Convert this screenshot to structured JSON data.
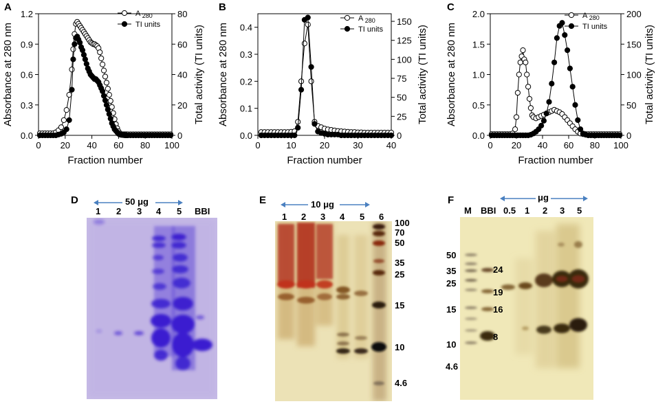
{
  "chart_data": [
    {
      "type": "line",
      "panel": "A",
      "xlabel": "Fraction number",
      "ylabel_left": "Absorbance at 280 nm",
      "ylabel_right": "Total activity (TI units)",
      "xlim": [
        0,
        100
      ],
      "ylim_left": [
        0,
        1.2
      ],
      "ylim_right": [
        0,
        80
      ],
      "xticks": [
        "0",
        "20",
        "40",
        "60",
        "80",
        "100"
      ],
      "yticks_left": [
        "0.0",
        "0.3",
        "0.6",
        "0.9",
        "1.2"
      ],
      "yticks_right": [
        "0",
        "20",
        "40",
        "60",
        "80"
      ],
      "legend": [
        "A 280",
        "TI units"
      ],
      "series": [
        {
          "name": "A 280",
          "axis": "left",
          "marker": "open",
          "x": [
            1,
            3,
            5,
            7,
            9,
            11,
            13,
            15,
            17,
            19,
            21,
            23,
            25,
            26,
            27,
            28,
            29,
            30,
            31,
            32,
            33,
            34,
            35,
            36,
            37,
            38,
            39,
            40,
            41,
            42,
            43,
            44,
            45,
            46,
            47,
            48,
            49,
            50,
            51,
            52,
            53,
            54,
            55,
            56,
            57,
            58,
            59,
            60,
            61,
            62,
            63,
            64,
            65,
            66,
            67,
            69,
            71,
            73,
            75,
            77,
            79,
            81,
            83,
            85,
            87,
            89,
            91,
            93,
            95,
            97,
            99
          ],
          "y": [
            0.02,
            0.02,
            0.02,
            0.02,
            0.02,
            0.02,
            0.03,
            0.05,
            0.08,
            0.15,
            0.25,
            0.4,
            0.65,
            0.85,
            1.0,
            1.1,
            1.12,
            1.1,
            1.08,
            1.06,
            1.04,
            1.02,
            1.0,
            0.98,
            0.96,
            0.94,
            0.92,
            0.91,
            0.9,
            0.9,
            0.89,
            0.88,
            0.86,
            0.82,
            0.76,
            0.7,
            0.64,
            0.58,
            0.52,
            0.46,
            0.4,
            0.34,
            0.28,
            0.22,
            0.16,
            0.11,
            0.07,
            0.04,
            0.02,
            0.01,
            0.01,
            0.01,
            0.01,
            0.01,
            0.01,
            0.01,
            0.01,
            0.01,
            0.01,
            0.01,
            0.01,
            0.01,
            0.01,
            0.01,
            0.01,
            0.01,
            0.01,
            0.01,
            0.01,
            0.01,
            0.01
          ]
        },
        {
          "name": "TI units",
          "axis": "right",
          "marker": "filled",
          "x": [
            1,
            3,
            5,
            7,
            9,
            11,
            13,
            15,
            17,
            19,
            21,
            23,
            25,
            26,
            27,
            28,
            29,
            30,
            31,
            32,
            33,
            34,
            35,
            36,
            37,
            38,
            39,
            40,
            41,
            42,
            43,
            44,
            45,
            46,
            47,
            48,
            49,
            50,
            51,
            52,
            53,
            54,
            55,
            56,
            57,
            58,
            59,
            60,
            61,
            62,
            63,
            64,
            65,
            66,
            67,
            69,
            71,
            73,
            75,
            77,
            79,
            81,
            83,
            85,
            87,
            89,
            91,
            93,
            95,
            97,
            99
          ],
          "y": [
            0,
            0,
            0,
            0,
            0,
            0,
            0,
            0.5,
            1,
            2,
            4,
            10,
            30,
            50,
            60,
            64,
            65,
            63,
            61,
            58,
            56,
            53,
            50,
            47,
            44,
            42,
            40,
            39,
            38,
            37,
            37,
            36,
            35,
            33,
            31,
            29,
            26,
            23,
            20,
            17,
            14,
            11,
            8,
            6,
            4,
            3,
            2,
            1,
            0.5,
            0.3,
            0.2,
            0.1,
            0,
            0,
            0,
            0,
            0,
            0,
            0,
            0,
            0,
            0,
            0,
            0,
            0,
            0,
            0,
            0,
            0,
            0,
            0
          ]
        }
      ]
    },
    {
      "type": "line",
      "panel": "B",
      "xlabel": "Fraction number",
      "ylabel_left": "Absorbance at 280 nm",
      "ylabel_right": "Total activity (TI units)",
      "xlim": [
        0,
        40
      ],
      "ylim_left": [
        0,
        0.45
      ],
      "ylim_right": [
        0,
        160
      ],
      "xticks": [
        "0",
        "10",
        "20",
        "30",
        "40"
      ],
      "yticks_left": [
        "0.0",
        "0.1",
        "0.2",
        "0.3",
        "0.4"
      ],
      "yticks_right": [
        "0",
        "25",
        "50",
        "75",
        "100",
        "125",
        "150"
      ],
      "legend": [
        "A 280",
        "TI units"
      ],
      "series": [
        {
          "name": "A 280",
          "axis": "left",
          "marker": "open",
          "x": [
            1,
            2,
            3,
            4,
            5,
            6,
            7,
            8,
            9,
            10,
            11,
            12,
            13,
            14,
            15,
            16,
            17,
            18,
            19,
            20,
            21,
            22,
            23,
            24,
            25,
            26,
            27,
            28,
            29,
            30,
            31,
            32,
            33,
            34,
            35,
            36,
            37,
            38,
            39,
            40
          ],
          "y": [
            0.012,
            0.012,
            0.012,
            0.012,
            0.012,
            0.012,
            0.012,
            0.012,
            0.012,
            0.013,
            0.015,
            0.05,
            0.2,
            0.34,
            0.41,
            0.2,
            0.05,
            0.035,
            0.03,
            0.025,
            0.022,
            0.02,
            0.018,
            0.016,
            0.015,
            0.014,
            0.013,
            0.012,
            0.012,
            0.011,
            0.011,
            0.01,
            0.01,
            0.01,
            0.01,
            0.01,
            0.01,
            0.01,
            0.01,
            0.01
          ]
        },
        {
          "name": "TI units",
          "axis": "right",
          "marker": "filled",
          "x": [
            1,
            2,
            3,
            4,
            5,
            6,
            7,
            8,
            9,
            10,
            11,
            12,
            13,
            14,
            15,
            16,
            17,
            18,
            19,
            20,
            21,
            22,
            23,
            24,
            25,
            26,
            27,
            28,
            29,
            30,
            31,
            32,
            33,
            34,
            35,
            36,
            37,
            38,
            39,
            40
          ],
          "y": [
            0,
            0,
            0,
            0,
            0,
            0,
            0,
            0,
            0,
            0,
            0,
            10,
            60,
            152,
            155,
            90,
            15,
            5,
            3,
            2,
            1,
            1,
            1,
            1,
            0,
            0,
            0,
            0,
            0,
            0,
            0,
            0,
            0,
            0,
            0,
            0,
            0,
            0,
            0,
            0
          ]
        }
      ]
    },
    {
      "type": "line",
      "panel": "C",
      "xlabel": "Fraction number",
      "ylabel_left": "Absorbance at 280 nm",
      "ylabel_right": "Total activity (TI units)",
      "xlim": [
        0,
        100
      ],
      "ylim_left": [
        0,
        2.0
      ],
      "ylim_right": [
        0,
        200
      ],
      "xticks": [
        "0",
        "20",
        "40",
        "60",
        "80",
        "100"
      ],
      "yticks_left": [
        "0.0",
        "0.5",
        "1.0",
        "1.5",
        "2.0"
      ],
      "yticks_right": [
        "0",
        "50",
        "100",
        "150",
        "200"
      ],
      "legend": [
        "A 280",
        "TI units"
      ],
      "series": [
        {
          "name": "A 280",
          "axis": "left",
          "marker": "open",
          "x": [
            1,
            3,
            5,
            7,
            9,
            11,
            13,
            15,
            17,
            19,
            20,
            21,
            22,
            23,
            24,
            25,
            26,
            27,
            28,
            29,
            30,
            31,
            32,
            33,
            35,
            37,
            39,
            41,
            43,
            45,
            47,
            49,
            51,
            53,
            55,
            57,
            59,
            61,
            63,
            65,
            67,
            69,
            71,
            73,
            75,
            77,
            79,
            81,
            83,
            85,
            87,
            89,
            91,
            93,
            95,
            97,
            99
          ],
          "y": [
            0.02,
            0.02,
            0.02,
            0.02,
            0.02,
            0.02,
            0.02,
            0.02,
            0.03,
            0.1,
            0.3,
            0.7,
            1.0,
            1.2,
            1.3,
            1.4,
            1.25,
            1.2,
            1.0,
            0.8,
            0.6,
            0.45,
            0.33,
            0.3,
            0.28,
            0.3,
            0.32,
            0.34,
            0.36,
            0.38,
            0.4,
            0.42,
            0.4,
            0.38,
            0.35,
            0.3,
            0.25,
            0.2,
            0.15,
            0.1,
            0.06,
            0.03,
            0.02,
            0.02,
            0.02,
            0.02,
            0.02,
            0.02,
            0.02,
            0.02,
            0.02,
            0.02,
            0.02,
            0.02,
            0.02,
            0.02,
            0.02
          ]
        },
        {
          "name": "TI units",
          "axis": "right",
          "marker": "filled",
          "x": [
            1,
            3,
            5,
            7,
            9,
            11,
            13,
            15,
            17,
            19,
            21,
            23,
            25,
            27,
            29,
            31,
            33,
            35,
            37,
            39,
            41,
            43,
            45,
            47,
            49,
            51,
            53,
            55,
            57,
            59,
            61,
            63,
            65,
            67,
            69,
            71,
            73,
            75,
            77,
            79,
            81,
            83,
            85,
            87,
            89,
            91,
            93,
            95,
            97,
            99
          ],
          "y": [
            0,
            0,
            0,
            0,
            0,
            0,
            0,
            0,
            0,
            0,
            0,
            0,
            0,
            0,
            0,
            1,
            3,
            6,
            10,
            16,
            24,
            36,
            55,
            85,
            120,
            160,
            180,
            185,
            165,
            140,
            110,
            80,
            50,
            25,
            10,
            3,
            1,
            0,
            0,
            0,
            0,
            0,
            0,
            0,
            0,
            0,
            0,
            0,
            0,
            0
          ]
        }
      ]
    }
  ],
  "panels": {
    "A": "A",
    "B": "B",
    "C": "C",
    "D": "D",
    "E": "E",
    "F": "F"
  },
  "gel_d": {
    "amount": "50 μg",
    "lanes": [
      "1",
      "2",
      "3",
      "4",
      "5",
      "BBI"
    ]
  },
  "gel_e": {
    "amount": "10 μg",
    "lanes": [
      "1",
      "2",
      "3",
      "4",
      "5",
      "6"
    ],
    "markers": [
      "100",
      "70",
      "50",
      "35",
      "25",
      "15",
      "10",
      "4.6"
    ]
  },
  "gel_f": {
    "unit": "μg",
    "lanes": [
      "M",
      "BBI",
      "0.5",
      "1",
      "2",
      "3",
      "5"
    ],
    "markers_left": [
      "50",
      "35",
      "25",
      "15",
      "10",
      "4.6"
    ],
    "bbi_bands": [
      "24",
      "19",
      "16",
      "8"
    ]
  },
  "colors": {
    "gel_d_bg": "#c8bde6",
    "gel_d_band": "#3a1fd0",
    "gel_e_bg": "#e7dcae",
    "gel_e_band": "#b0281a",
    "gel_f_bg": "#efe7b6",
    "gel_f_band": "#7a3a1a",
    "arrow": "#4a80c0"
  }
}
